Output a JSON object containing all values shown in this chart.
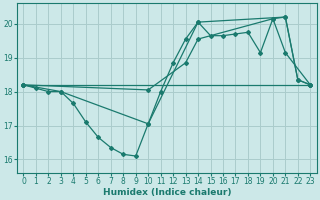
{
  "xlabel": "Humidex (Indice chaleur)",
  "bg_color": "#cce8e8",
  "grid_color": "#aacccc",
  "line_color": "#1a7a6e",
  "xlim": [
    -0.5,
    23.5
  ],
  "ylim": [
    15.6,
    20.6
  ],
  "yticks": [
    16,
    17,
    18,
    19,
    20
  ],
  "xticks": [
    0,
    1,
    2,
    3,
    4,
    5,
    6,
    7,
    8,
    9,
    10,
    11,
    12,
    13,
    14,
    15,
    16,
    17,
    18,
    19,
    20,
    21,
    22,
    23
  ],
  "series": [
    {
      "x": [
        0,
        1,
        2,
        3,
        4,
        5,
        6,
        7,
        8,
        9,
        10,
        11,
        12,
        13,
        14,
        15,
        16,
        17,
        18,
        19,
        20,
        21,
        22,
        23
      ],
      "y": [
        18.2,
        18.1,
        18.0,
        18.0,
        17.65,
        17.1,
        16.65,
        16.35,
        16.15,
        16.1,
        17.05,
        18.0,
        18.85,
        19.55,
        20.05,
        19.65,
        19.65,
        19.7,
        19.75,
        19.15,
        20.15,
        20.2,
        18.35,
        18.2
      ]
    },
    {
      "x": [
        0,
        3,
        10,
        14,
        21,
        22,
        23
      ],
      "y": [
        18.2,
        18.0,
        17.05,
        20.05,
        20.2,
        18.35,
        18.2
      ]
    },
    {
      "x": [
        0,
        23
      ],
      "y": [
        18.2,
        18.2
      ]
    },
    {
      "x": [
        0,
        10,
        13,
        14,
        20,
        21,
        23
      ],
      "y": [
        18.2,
        18.05,
        18.85,
        19.55,
        20.15,
        19.15,
        18.2
      ]
    }
  ]
}
